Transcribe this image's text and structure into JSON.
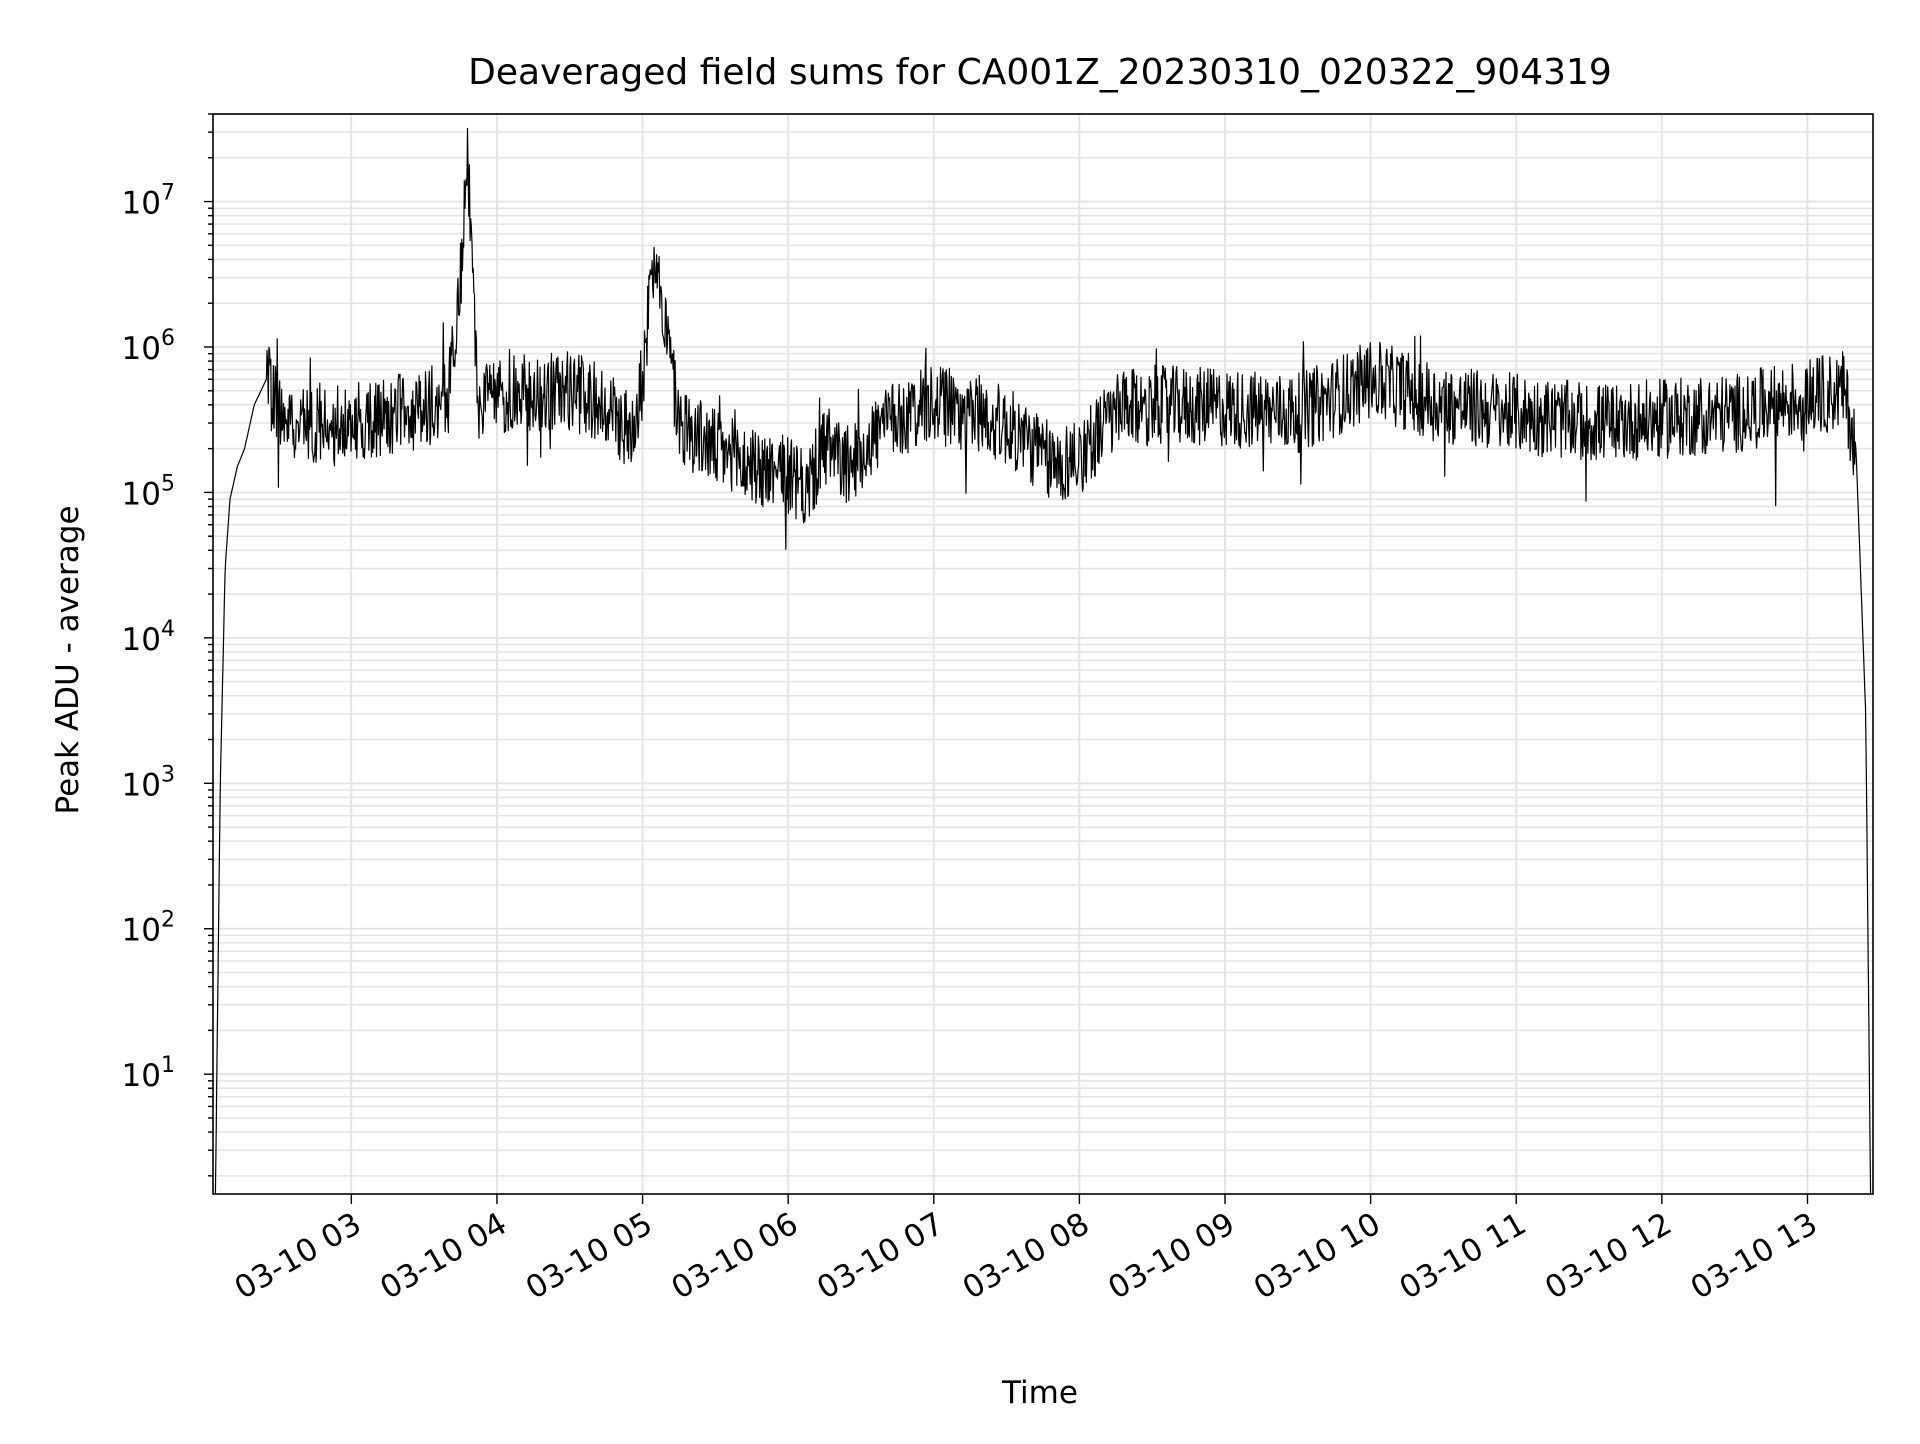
{
  "chart_data": {
    "type": "line",
    "title": "Deaveraged field sums for CA001Z_20230310_020322_904319",
    "xlabel": "Time",
    "ylabel": "Peak ADU - average",
    "yscale": "log",
    "xlim": [
      "2023-03-10 02:03",
      "2023-03-10 13:27"
    ],
    "ylim": [
      1.5,
      40000000
    ],
    "grid": true,
    "x_ticks": [
      "03-10 03",
      "03-10 04",
      "03-10 05",
      "03-10 06",
      "03-10 07",
      "03-10 08",
      "03-10 09",
      "03-10 10",
      "03-10 11",
      "03-10 12",
      "03-10 13"
    ],
    "y_ticks": [
      {
        "base": "10",
        "exp": "1"
      },
      {
        "base": "10",
        "exp": "2"
      },
      {
        "base": "10",
        "exp": "3"
      },
      {
        "base": "10",
        "exp": "4"
      },
      {
        "base": "10",
        "exp": "5"
      },
      {
        "base": "10",
        "exp": "6"
      },
      {
        "base": "10",
        "exp": "7"
      }
    ],
    "line_color": "#000000",
    "series": [
      {
        "x": [
          "2023-03-10 02:04",
          "2023-03-10 02:06",
          "2023-03-10 02:08",
          "2023-03-10 02:10",
          "2023-03-10 02:13",
          "2023-03-10 02:16",
          "2023-03-10 02:20",
          "2023-03-10 02:25",
          "2023-03-10 02:30",
          "2023-03-10 02:40",
          "2023-03-10 02:50",
          "2023-03-10 03:00",
          "2023-03-10 03:15",
          "2023-03-10 03:30",
          "2023-03-10 03:40",
          "2023-03-10 03:45",
          "2023-03-10 03:48",
          "2023-03-10 03:52",
          "2023-03-10 04:00",
          "2023-03-10 04:15",
          "2023-03-10 04:30",
          "2023-03-10 04:45",
          "2023-03-10 04:55",
          "2023-03-10 05:00",
          "2023-03-10 05:05",
          "2023-03-10 05:15",
          "2023-03-10 05:30",
          "2023-03-10 05:45",
          "2023-03-10 06:00",
          "2023-03-10 06:07",
          "2023-03-10 06:15",
          "2023-03-10 06:25",
          "2023-03-10 06:40",
          "2023-03-10 07:00",
          "2023-03-10 07:20",
          "2023-03-10 07:35",
          "2023-03-10 07:50",
          "2023-03-10 08:00",
          "2023-03-10 08:15",
          "2023-03-10 08:30",
          "2023-03-10 09:00",
          "2023-03-10 09:30",
          "2023-03-10 09:45",
          "2023-03-10 10:00",
          "2023-03-10 10:15",
          "2023-03-10 10:30",
          "2023-03-10 11:00",
          "2023-03-10 11:30",
          "2023-03-10 12:00",
          "2023-03-10 12:30",
          "2023-03-10 13:00",
          "2023-03-10 13:15",
          "2023-03-10 13:20",
          "2023-03-10 13:24",
          "2023-03-10 13:26"
        ],
        "y": [
          1.5,
          1000,
          30000,
          90000,
          150000,
          200000,
          400000,
          600000,
          350000,
          300000,
          280000,
          300000,
          330000,
          380000,
          450000,
          3000000,
          20000000,
          400000,
          450000,
          480000,
          500000,
          400000,
          250000,
          600000,
          5000000,
          300000,
          200000,
          150000,
          130000,
          100000,
          200000,
          150000,
          300000,
          400000,
          350000,
          250000,
          150000,
          180000,
          350000,
          400000,
          380000,
          350000,
          450000,
          600000,
          500000,
          400000,
          350000,
          300000,
          320000,
          350000,
          450000,
          500000,
          200000,
          3000,
          1.5
        ]
      }
    ]
  }
}
